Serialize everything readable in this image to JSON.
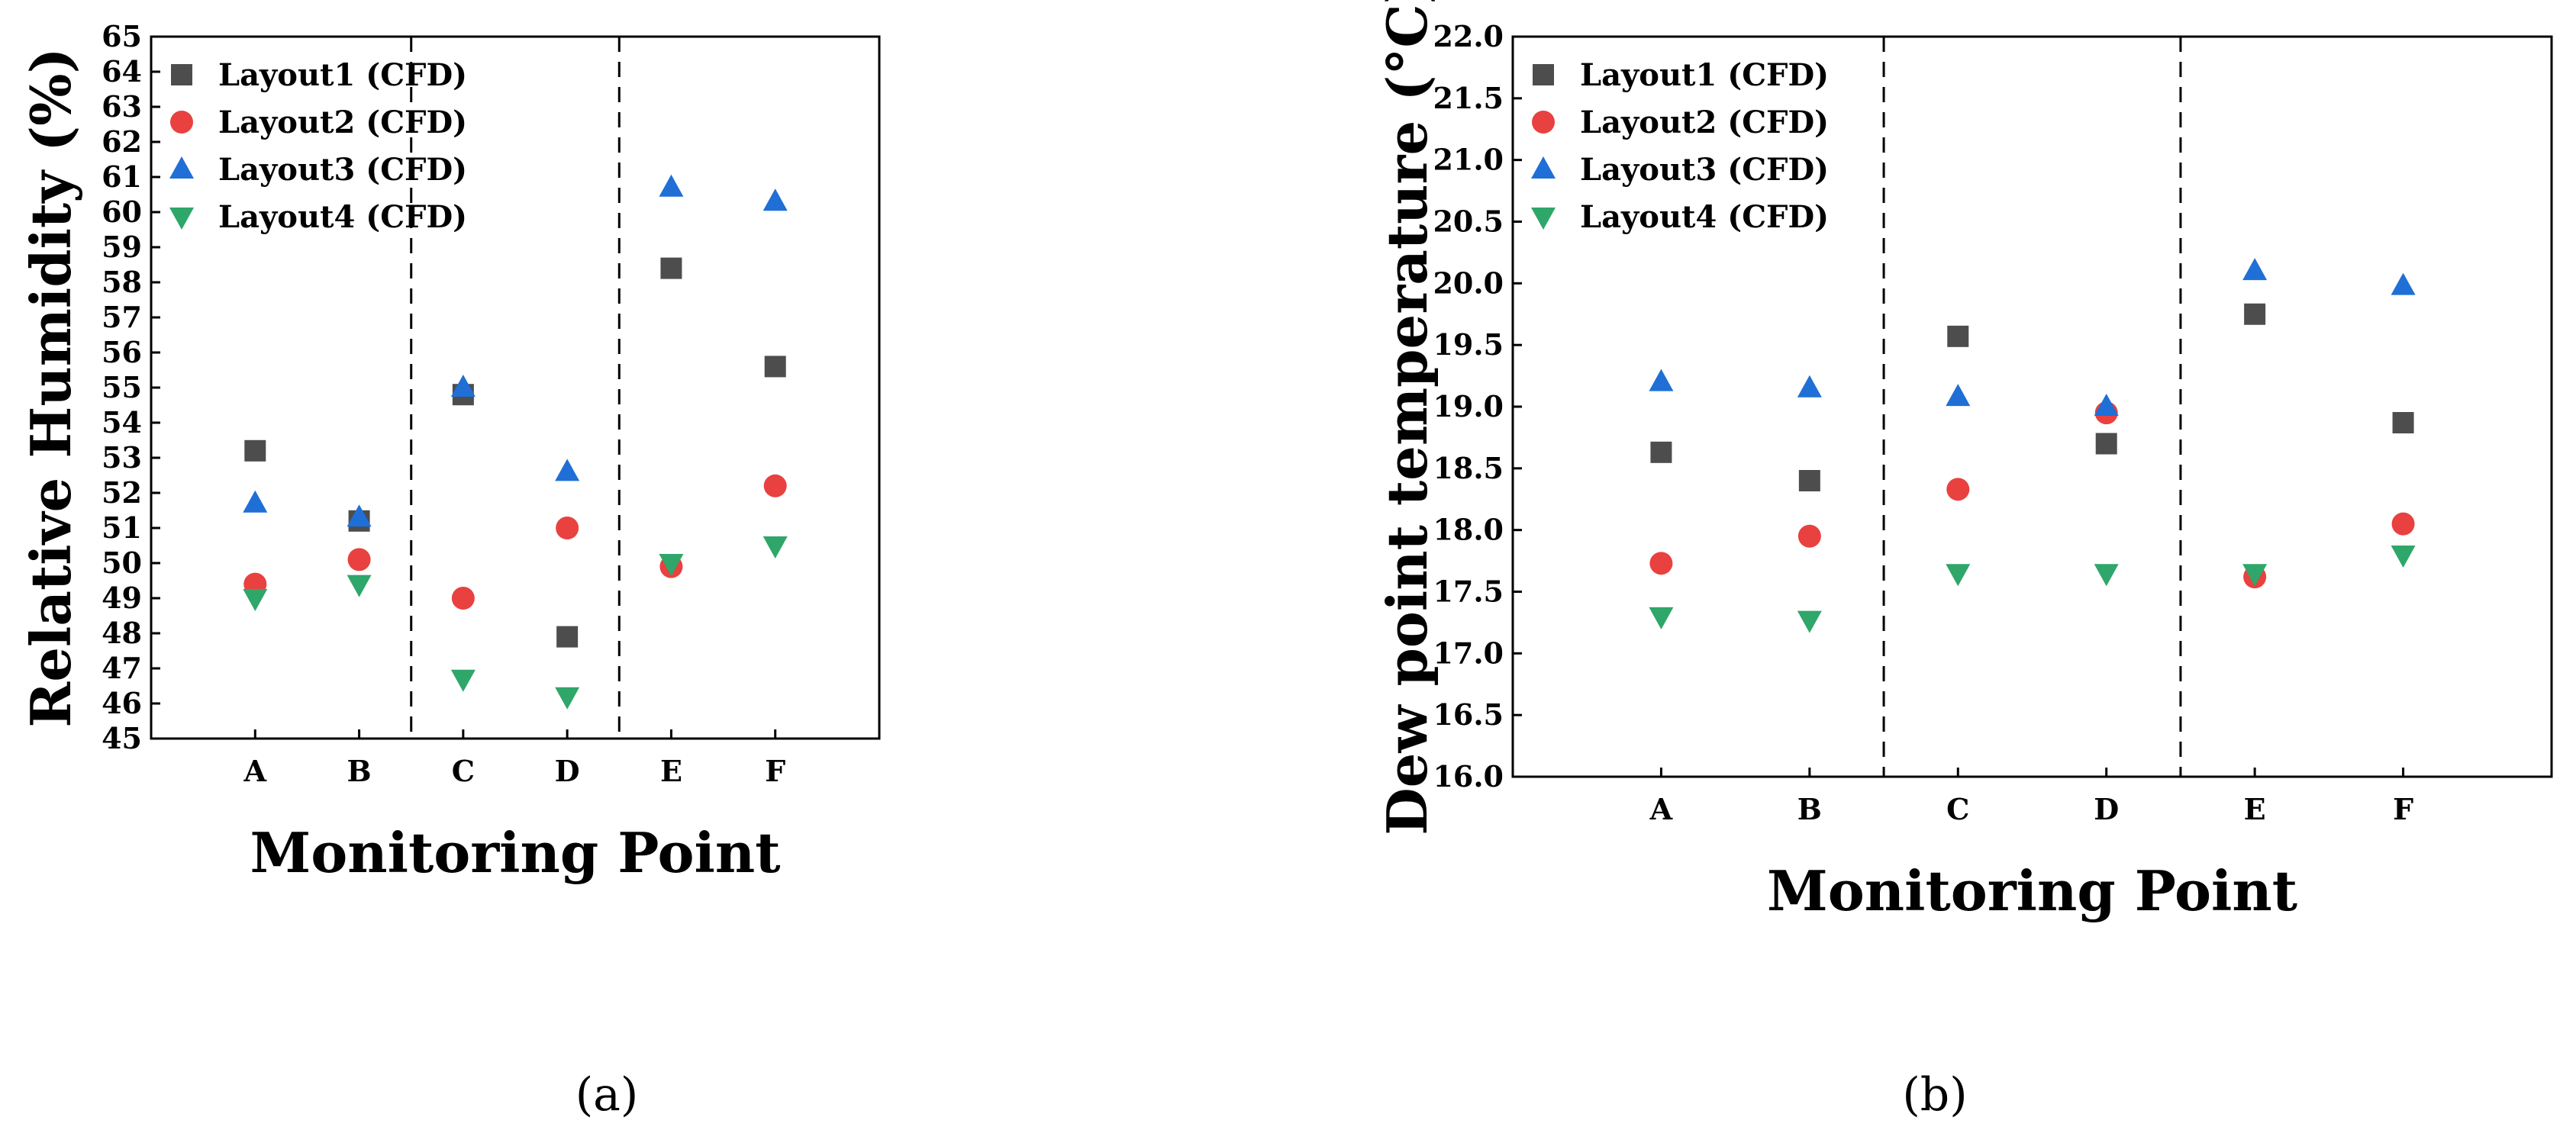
{
  "chart_data": [
    {
      "type": "scatter",
      "panel_label": "(a)",
      "title": "",
      "xlabel": "Monitoring Point",
      "ylabel": "Relative Humidity (%)",
      "categories": [
        "A",
        "B",
        "C",
        "D",
        "E",
        "F"
      ],
      "ylim": [
        45,
        65
      ],
      "yticks": [
        "45",
        "46",
        "47",
        "48",
        "49",
        "50",
        "51",
        "52",
        "53",
        "54",
        "55",
        "56",
        "57",
        "58",
        "59",
        "60",
        "61",
        "62",
        "63",
        "64",
        "65"
      ],
      "grid": false,
      "separators_after": [
        "B",
        "D"
      ],
      "legend_position": "top-left",
      "series": [
        {
          "name": "Layout1 (CFD)",
          "marker": "square",
          "color": "#4d4d4d",
          "values": [
            53.2,
            51.2,
            54.8,
            47.9,
            58.4,
            55.6
          ]
        },
        {
          "name": "Layout2 (CFD)",
          "marker": "circle",
          "color": "#e8413f",
          "values": [
            49.4,
            50.1,
            49.0,
            51.0,
            49.9,
            52.2
          ]
        },
        {
          "name": "Layout3 (CFD)",
          "marker": "triangle-up",
          "color": "#1f6fd6",
          "values": [
            51.7,
            51.3,
            55.0,
            52.6,
            60.7,
            60.3
          ]
        },
        {
          "name": "Layout4 (CFD)",
          "marker": "triangle-down",
          "color": "#2fa66a",
          "values": [
            49.0,
            49.4,
            46.7,
            46.2,
            50.0,
            50.5
          ]
        }
      ]
    },
    {
      "type": "scatter",
      "panel_label": "(b)",
      "title": "",
      "xlabel": "Monitoring Point",
      "ylabel": "Dew point temperature (°C)",
      "categories": [
        "A",
        "B",
        "C",
        "D",
        "E",
        "F"
      ],
      "ylim": [
        16.0,
        22.0
      ],
      "yticks": [
        "16.0",
        "16.5",
        "17.0",
        "17.5",
        "18.0",
        "18.5",
        "19.0",
        "19.5",
        "20.0",
        "20.5",
        "21.0",
        "21.5",
        "22.0"
      ],
      "grid": false,
      "separators_after": [
        "B",
        "D"
      ],
      "legend_position": "top-left",
      "series": [
        {
          "name": "Layout1 (CFD)",
          "marker": "square",
          "color": "#4d4d4d",
          "values": [
            18.63,
            18.4,
            19.57,
            18.7,
            19.75,
            18.87
          ]
        },
        {
          "name": "Layout2 (CFD)",
          "marker": "circle",
          "color": "#e8413f",
          "values": [
            17.73,
            17.95,
            18.33,
            18.95,
            17.62,
            18.05
          ]
        },
        {
          "name": "Layout3 (CFD)",
          "marker": "triangle-up",
          "color": "#1f6fd6",
          "values": [
            19.2,
            19.15,
            19.08,
            19.0,
            20.1,
            19.98
          ]
        },
        {
          "name": "Layout4 (CFD)",
          "marker": "triangle-down",
          "color": "#2fa66a",
          "values": [
            17.3,
            17.27,
            17.65,
            17.65,
            17.65,
            17.8
          ]
        }
      ]
    }
  ]
}
